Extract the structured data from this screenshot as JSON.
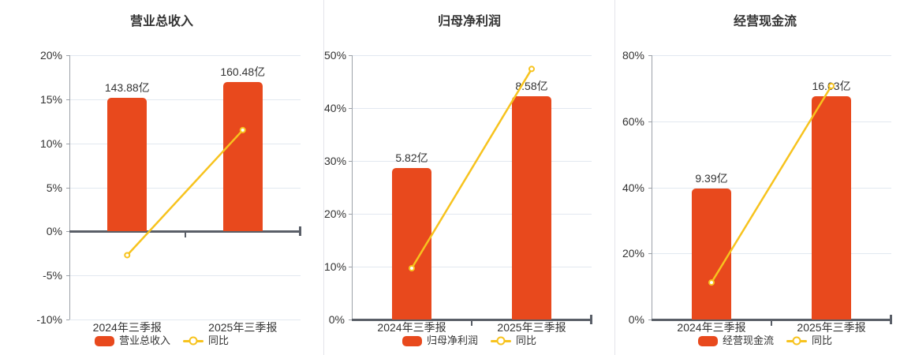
{
  "colors": {
    "bar": "#E8491D",
    "line": "#F7C31E",
    "grid": "#E2E8F0",
    "axis": "#9CA1A8",
    "axis_dark": "#5A5F68",
    "text": "#333333",
    "separator": "#E4E4EA",
    "background": "#FFFFFF"
  },
  "chart_data": [
    {
      "type": "bar",
      "title": "营业总收入",
      "categories": [
        "2024年三季报",
        "2025年三季报"
      ],
      "ylim": [
        -10,
        20
      ],
      "yticks": [
        "20%",
        "15%",
        "10%",
        "5%",
        "0%",
        "-5%",
        "-10%"
      ],
      "grid": true,
      "legend_position": "bottom",
      "series": [
        {
          "kind": "bar",
          "name": "营业总收入",
          "unit": "亿",
          "values": [
            143.88,
            160.48
          ],
          "labels": [
            "143.88亿",
            "160.48亿"
          ],
          "bar_height_axis_pct": [
            15.2,
            17.0
          ]
        },
        {
          "kind": "line",
          "name": "同比",
          "values_pct": [
            -2.7,
            11.5
          ]
        }
      ]
    },
    {
      "type": "bar",
      "title": "归母净利润",
      "categories": [
        "2024年三季报",
        "2025年三季报"
      ],
      "ylim": [
        0,
        50
      ],
      "yticks": [
        "50%",
        "40%",
        "30%",
        "20%",
        "10%",
        "0%"
      ],
      "grid": true,
      "legend_position": "bottom",
      "series": [
        {
          "kind": "bar",
          "name": "归母净利润",
          "unit": "亿",
          "values": [
            5.82,
            8.58
          ],
          "labels": [
            "5.82亿",
            "8.58亿"
          ],
          "bar_height_axis_pct": [
            28.7,
            42.3
          ]
        },
        {
          "kind": "line",
          "name": "同比",
          "values_pct": [
            9.7,
            47.4
          ]
        }
      ]
    },
    {
      "type": "bar",
      "title": "经营现金流",
      "categories": [
        "2024年三季报",
        "2025年三季报"
      ],
      "ylim": [
        0,
        80
      ],
      "yticks": [
        "80%",
        "60%",
        "40%",
        "20%",
        "0%"
      ],
      "grid": true,
      "legend_position": "bottom",
      "series": [
        {
          "kind": "bar",
          "name": "经营现金流",
          "unit": "亿",
          "values": [
            9.39,
            16.03
          ],
          "labels": [
            "9.39亿",
            "16.03亿"
          ],
          "bar_height_axis_pct": [
            39.7,
            67.7
          ]
        },
        {
          "kind": "line",
          "name": "同比",
          "values_pct": [
            11.2,
            70.7
          ]
        }
      ]
    }
  ]
}
